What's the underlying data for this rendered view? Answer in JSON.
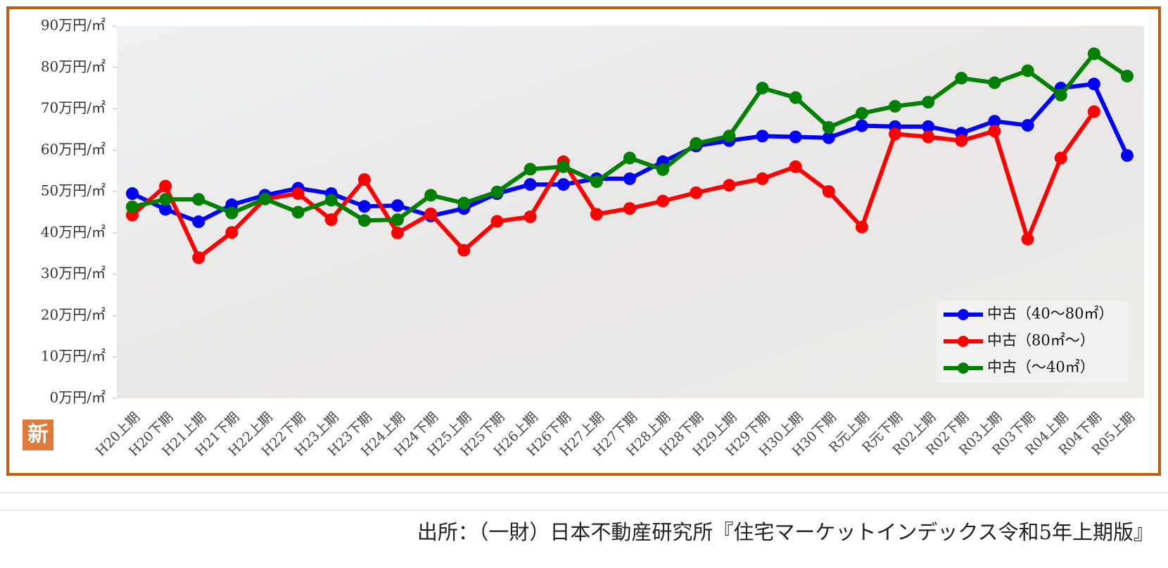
{
  "chart_data": {
    "type": "line",
    "categories": [
      "H20上期",
      "H20下期",
      "H21上期",
      "H21下期",
      "H22上期",
      "H22下期",
      "H23上期",
      "H23下期",
      "H24上期",
      "H24下期",
      "H25上期",
      "H25下期",
      "H26上期",
      "H26下期",
      "H27上期",
      "H27下期",
      "H28上期",
      "H28下期",
      "H29上期",
      "H29下期",
      "H30上期",
      "H30下期",
      "R元上期",
      "R元下期",
      "R02上期",
      "R02下期",
      "R03上期",
      "R03下期",
      "R04上期",
      "R04下期",
      "R05上期"
    ],
    "series": [
      {
        "name": "中古（40～80㎡）",
        "color": "#0000ff",
        "values": [
          49.5,
          45.7,
          42.7,
          46.8,
          49.1,
          50.8,
          49.5,
          46.4,
          46.6,
          44.1,
          45.9,
          49.5,
          51.7,
          51.7,
          53.1,
          53.1,
          57.2,
          61,
          62.3,
          63.4,
          63.2,
          63,
          65.9,
          65.7,
          65.7,
          64.1,
          67,
          66,
          75,
          76,
          58.7
        ]
      },
      {
        "name": "中古（80㎡～）",
        "color": "#ff0000",
        "values": [
          44.3,
          51.3,
          34,
          40.1,
          48.2,
          49.5,
          43.2,
          52.9,
          40,
          44.6,
          35.8,
          42.8,
          43.9,
          57.2,
          44.5,
          45.9,
          47.7,
          49.7,
          51.5,
          53.1,
          56,
          50,
          41.4,
          63.9,
          63.2,
          62.3,
          64.6,
          38.5,
          58.1,
          69.3,
          null
        ]
      },
      {
        "name": "中古（～40㎡）",
        "color": "#008000",
        "values": [
          46.3,
          48.1,
          48.1,
          44.8,
          48.2,
          45,
          47.9,
          43,
          43.2,
          49.1,
          47.2,
          49.9,
          55.4,
          56,
          52.4,
          58.1,
          55.3,
          61.6,
          63.4,
          75,
          72.7,
          65.5,
          68.9,
          70.6,
          71.6,
          77.4,
          76.3,
          79.2,
          73.3,
          83.3,
          77.9
        ]
      }
    ],
    "ylim": [
      0,
      90
    ],
    "yticks": [
      {
        "value": 0,
        "label": "0万円/㎡"
      },
      {
        "value": 10,
        "label": "10万円/㎡"
      },
      {
        "value": 20,
        "label": "20万円/㎡"
      },
      {
        "value": 30,
        "label": "30万円/㎡"
      },
      {
        "value": 40,
        "label": "40万円/㎡"
      },
      {
        "value": 50,
        "label": "50万円/㎡"
      },
      {
        "value": 60,
        "label": "60万円/㎡"
      },
      {
        "value": 70,
        "label": "70万円/㎡"
      },
      {
        "value": 80,
        "label": "80万円/㎡"
      },
      {
        "value": 90,
        "label": "90万円/㎡"
      }
    ],
    "legend": "bottom-right",
    "badge": "新",
    "source": "出所：（一財）日本不動産研究所『住宅マーケットインデックス令和5年上期版』"
  }
}
